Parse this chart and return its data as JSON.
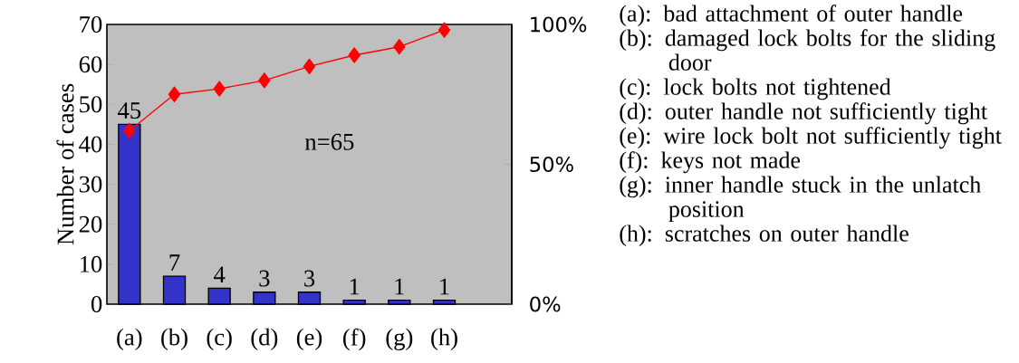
{
  "chart_data": {
    "type": "bar",
    "ylabel": "Number of cases",
    "categories": [
      "(a)",
      "(b)",
      "(c)",
      "(d)",
      "(e)",
      "(f)",
      "(g)",
      "(h)"
    ],
    "series": [
      {
        "color": "#3333cc",
        "values": [
          45,
          7,
          4,
          3,
          3,
          1,
          1,
          1
        ],
        "value_labels": [
          "45",
          "7",
          "4",
          "3",
          "3",
          "1",
          "1",
          "1"
        ]
      },
      {
        "type": "line",
        "axis": "y2",
        "color": "#ff0000",
        "values": [
          62,
          75,
          77,
          80,
          85,
          89,
          92,
          98
        ]
      }
    ],
    "marker": "diamond",
    "ylim": [
      0,
      70
    ],
    "yticks": [
      0,
      10,
      20,
      30,
      40,
      50,
      60,
      70
    ],
    "y2lim": [
      0,
      100
    ],
    "y2ticks": [
      {
        "value": 0,
        "label": "0%"
      },
      {
        "value": 50,
        "label": "50%"
      },
      {
        "value": 100,
        "label": "100%"
      }
    ],
    "annotations": [
      "n=65",
      "(a): bad attachment of outer handle",
      "(b): damaged lock bolts for the sliding door",
      "(c): lock bolts not tightened",
      "(d): outer handle not sufficiently tight",
      "(e): wire lock bolt not sufficiently tight",
      "(f): keys not made",
      "(g): inner handle stuck in the unlatch position",
      "(h): scratches on outer handle"
    ]
  }
}
